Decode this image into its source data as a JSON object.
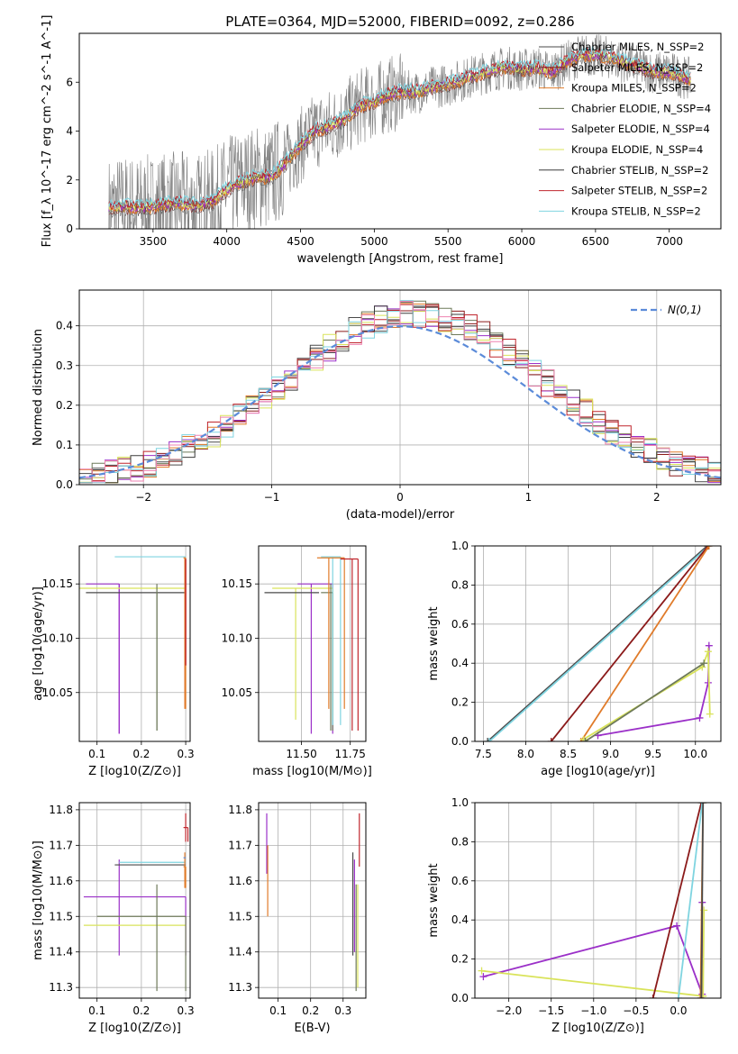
{
  "figure": {
    "title": "PLATE=0364, MJD=52000, FIBERID=0092, z=0.286"
  },
  "chart_data": [
    {
      "id": "spectrum",
      "type": "line",
      "title": "PLATE=0364, MJD=52000, FIBERID=0092, z=0.286",
      "xlabel": "wavelength [Angstrom, rest frame]",
      "ylabel": "Flux [f_λ 10^-17 erg cm^-2 s^-1 A^-1]",
      "xlim": [
        3000,
        7350
      ],
      "ylim": [
        0,
        8
      ],
      "xticks": [
        3500,
        4000,
        4500,
        5000,
        5500,
        6000,
        6500,
        7000
      ],
      "yticks": [
        0,
        2,
        4,
        6
      ],
      "grid": false,
      "legend_loc": "upper right",
      "data_color": "#7f7f7f",
      "data_range": [
        3200,
        7150
      ],
      "series": [
        {
          "name": "Chabrier MILES, N_SSP=2",
          "color": "#4a4a4a",
          "width": 0.5
        },
        {
          "name": "Salpeter MILES, N_SSP=2",
          "color": "#8b1a1a",
          "width": 0.5
        },
        {
          "name": "Kroupa MILES, N_SSP=2",
          "color": "#e07b2a",
          "width": 1.0
        },
        {
          "name": "Chabrier ELODIE, N_SSP=4",
          "color": "#6e7a5a",
          "width": 0.5
        },
        {
          "name": "Salpeter ELODIE, N_SSP=4",
          "color": "#9b30c8",
          "width": 1.0
        },
        {
          "name": "Kroupa ELODIE, N_SSP=4",
          "color": "#d9e35a",
          "width": 1.0
        },
        {
          "name": "Chabrier STELIB, N_SSP=2",
          "color": "#3a3a3a",
          "width": 0.5
        },
        {
          "name": "Salpeter STELIB, N_SSP=2",
          "color": "#c0262d",
          "width": 1.0
        },
        {
          "name": "Kroupa STELIB, N_SSP=2",
          "color": "#7fd4e0",
          "width": 1.0
        }
      ],
      "model_continuum": {
        "x": [
          3200,
          3300,
          3450,
          3600,
          3700,
          3800,
          3900,
          4000,
          4100,
          4200,
          4300,
          4400,
          4500,
          4600,
          4700,
          4800,
          4900,
          5000,
          5100,
          5200,
          5300,
          5400,
          5500,
          5600,
          5700,
          5800,
          5900,
          6000,
          6100,
          6200,
          6300,
          6400,
          6500,
          6600,
          6700,
          6800,
          6900,
          7000,
          7100,
          7150
        ],
        "y": [
          0.8,
          0.9,
          0.85,
          1.0,
          1.0,
          0.95,
          1.1,
          1.6,
          1.9,
          2.1,
          2.1,
          2.7,
          3.4,
          4.0,
          4.2,
          4.5,
          5.0,
          5.2,
          5.5,
          5.6,
          5.6,
          5.8,
          5.9,
          6.1,
          6.3,
          6.5,
          6.6,
          6.5,
          6.6,
          6.4,
          6.8,
          7.1,
          7.1,
          7.0,
          6.8,
          6.6,
          6.4,
          6.4,
          6.2,
          6.1
        ]
      }
    },
    {
      "id": "residuals",
      "type": "line",
      "xlabel": "(data-model)/error",
      "ylabel": "Normed distribution",
      "xlim": [
        -2.5,
        2.5
      ],
      "ylim": [
        0,
        0.49
      ],
      "xticks": [
        -2,
        -1,
        0,
        1,
        2
      ],
      "yticks": [
        0.0,
        0.1,
        0.2,
        0.3,
        0.4
      ],
      "grid": true,
      "legend_loc": "upper right",
      "series": [
        {
          "name": "N(0,1)",
          "color": "#5b8bd9",
          "style": "dashed"
        }
      ],
      "histogram_colors": [
        "#4a4a4a",
        "#8b1a1a",
        "#e07b2a",
        "#6e7a5a",
        "#9b30c8",
        "#d9e35a",
        "#3a3a3a",
        "#c0262d",
        "#7fd4e0",
        "#ee82b0"
      ]
    },
    {
      "id": "age_vs_Z",
      "type": "scatter",
      "xlabel": "Z [log10(Z/Z⊙)]",
      "ylabel": "age [log10(age/yr)]",
      "xlim": [
        0.06,
        0.31
      ],
      "ylim": [
        10.005,
        10.185
      ],
      "xticks": [
        0.1,
        0.2,
        0.3
      ],
      "yticks": [
        10.05,
        10.1,
        10.15
      ],
      "grid": true,
      "points": [
        {
          "x": 0.15,
          "y": 10.15,
          "xerr": [
            0.075,
            0.15
          ],
          "yerr": [
            10.012,
            10.15
          ],
          "color": "#9b30c8"
        },
        {
          "x": 0.12,
          "y": 10.146,
          "xerr": [
            0.06,
            0.3
          ],
          "yerr": [
            10.146,
            10.146
          ],
          "color": "#d9e35a"
        },
        {
          "x": 0.2,
          "y": 10.142,
          "xerr": [
            0.075,
            0.3
          ],
          "yerr": [
            10.142,
            10.142
          ],
          "color": "#4a4a4a"
        },
        {
          "x": 0.235,
          "y": 10.142,
          "xerr": [
            0.235,
            0.235
          ],
          "yerr": [
            10.015,
            10.15
          ],
          "color": "#6e7a5a"
        },
        {
          "x": 0.2,
          "y": 10.175,
          "xerr": [
            0.14,
            0.3
          ],
          "yerr": [
            10.175,
            10.175
          ],
          "color": "#7fd4e0"
        },
        {
          "x": 0.298,
          "y": 10.174,
          "xerr": [
            0.295,
            0.3
          ],
          "yerr": [
            10.035,
            10.174
          ],
          "color": "#e07b2a"
        },
        {
          "x": 0.3,
          "y": 10.173,
          "xerr": [
            0.3,
            0.3
          ],
          "yerr": [
            10.075,
            10.173
          ],
          "color": "#c0262d"
        }
      ]
    },
    {
      "id": "age_vs_mass",
      "type": "scatter",
      "xlabel": "mass [log10(M/M⊙)]",
      "ylabel": "",
      "xlim": [
        11.28,
        11.83
      ],
      "ylim": [
        10.005,
        10.185
      ],
      "xticks": [
        11.5,
        11.75
      ],
      "yticks": [
        10.05,
        10.1,
        10.15
      ],
      "grid": true,
      "points": [
        {
          "x": 11.55,
          "y": 10.15,
          "xerr": [
            11.48,
            11.66
          ],
          "yerr": [
            10.012,
            10.15
          ],
          "color": "#9b30c8"
        },
        {
          "x": 11.47,
          "y": 10.146,
          "xerr": [
            11.35,
            11.66
          ],
          "yerr": [
            10.025,
            10.146
          ],
          "color": "#d9e35a"
        },
        {
          "x": 11.5,
          "y": 10.142,
          "xerr": [
            11.31,
            11.59
          ],
          "yerr": [
            10.142,
            10.142
          ],
          "color": "#4a4a4a"
        },
        {
          "x": 11.65,
          "y": 10.142,
          "xerr": [
            11.6,
            11.66
          ],
          "yerr": [
            10.015,
            10.15
          ],
          "color": "#6e7a5a"
        },
        {
          "x": 11.66,
          "y": 10.175,
          "xerr": [
            11.6,
            11.7
          ],
          "yerr": [
            10.02,
            10.175
          ],
          "color": "#7fd4e0"
        },
        {
          "x": 11.64,
          "y": 10.174,
          "xerr": [
            11.58,
            11.72
          ],
          "yerr": [
            10.035,
            10.174
          ],
          "color": "#e07b2a"
        },
        {
          "x": 11.76,
          "y": 10.173,
          "xerr": [
            11.7,
            11.79
          ],
          "yerr": [
            10.015,
            10.173
          ],
          "color": "#c0262d"
        }
      ]
    },
    {
      "id": "weight_vs_age",
      "type": "line",
      "xlabel": "age [log10(age/yr)]",
      "ylabel": "mass weight",
      "xlim": [
        7.4,
        10.3
      ],
      "ylim": [
        0.0,
        1.0
      ],
      "xticks": [
        7.5,
        8.0,
        8.5,
        9.0,
        9.5,
        10.0
      ],
      "yticks": [
        0.0,
        0.2,
        0.4,
        0.6,
        0.8,
        1.0
      ],
      "grid": true,
      "series": [
        {
          "name": "",
          "color": "#4a4a4a",
          "x": [
            7.55,
            10.14
          ],
          "y": [
            0.0,
            1.0
          ]
        },
        {
          "name": "",
          "color": "#7fd4e0",
          "x": [
            7.57,
            10.16
          ],
          "y": [
            0.0,
            1.0
          ]
        },
        {
          "name": "",
          "color": "#8b1a1a",
          "x": [
            8.3,
            10.15
          ],
          "y": [
            0.0,
            1.0
          ]
        },
        {
          "name": "",
          "color": "#e07b2a",
          "x": [
            8.65,
            10.16
          ],
          "y": [
            0.0,
            1.0
          ]
        },
        {
          "name": "",
          "color": "#9b30c8",
          "x": [
            8.85,
            10.05,
            10.15,
            10.16
          ],
          "y": [
            0.03,
            0.12,
            0.3,
            0.49
          ]
        },
        {
          "name": "",
          "color": "#d9e35a",
          "x": [
            8.68,
            10.08,
            10.15,
            10.17
          ],
          "y": [
            0.01,
            0.38,
            0.46,
            0.14
          ]
        },
        {
          "name": "",
          "color": "#6e7a5a",
          "x": [
            8.7,
            10.1
          ],
          "y": [
            0.0,
            0.4
          ]
        }
      ]
    },
    {
      "id": "mass_vs_Z",
      "type": "scatter",
      "xlabel": "Z [log10(Z/Z⊙)]",
      "ylabel": "mass [log10(M/M⊙)]",
      "xlim": [
        0.06,
        0.31
      ],
      "ylim": [
        11.27,
        11.82
      ],
      "xticks": [
        0.1,
        0.2,
        0.3
      ],
      "yticks": [
        11.3,
        11.4,
        11.5,
        11.6,
        11.7,
        11.8
      ],
      "grid": true,
      "points": [
        {
          "x": 0.15,
          "y": 11.555,
          "xerr": [
            0.07,
            0.3
          ],
          "yerr": [
            11.39,
            11.66
          ],
          "color": "#9b30c8"
        },
        {
          "x": 0.12,
          "y": 11.475,
          "xerr": [
            0.07,
            0.3
          ],
          "yerr": [
            11.475,
            11.475
          ],
          "color": "#d9e35a"
        },
        {
          "x": 0.235,
          "y": 11.5,
          "xerr": [
            0.1,
            0.3
          ],
          "yerr": [
            11.29,
            11.59
          ],
          "color": "#6e7a5a"
        },
        {
          "x": 0.2,
          "y": 11.645,
          "xerr": [
            0.14,
            0.3
          ],
          "yerr": [
            11.645,
            11.645
          ],
          "color": "#4a4a4a"
        },
        {
          "x": 0.22,
          "y": 11.652,
          "xerr": [
            0.15,
            0.3
          ],
          "yerr": [
            11.652,
            11.652
          ],
          "color": "#7fd4e0"
        },
        {
          "x": 0.298,
          "y": 11.64,
          "xerr": [
            0.295,
            0.3
          ],
          "yerr": [
            11.58,
            11.68
          ],
          "color": "#e07b2a"
        },
        {
          "x": 0.298,
          "y": 11.665,
          "xerr": [
            0.295,
            0.3
          ],
          "yerr": [
            11.665,
            11.665
          ],
          "color": "#5b8bd9"
        },
        {
          "x": 0.3,
          "y": 11.75,
          "xerr": [
            0.295,
            0.305
          ],
          "yerr": [
            11.71,
            11.79
          ],
          "color": "#c0262d"
        }
      ]
    },
    {
      "id": "mass_vs_EBV",
      "type": "scatter",
      "xlabel": "E(B-V)",
      "ylabel": "",
      "xlim": [
        0.04,
        0.37
      ],
      "ylim": [
        11.27,
        11.82
      ],
      "xticks": [
        0.1,
        0.2,
        0.3
      ],
      "yticks": [
        11.3,
        11.4,
        11.5,
        11.6,
        11.7,
        11.8
      ],
      "grid": true,
      "points": [
        {
          "x": 0.065,
          "y": 11.7,
          "yerr": [
            11.62,
            11.79
          ],
          "color": "#9b30c8"
        },
        {
          "x": 0.068,
          "y": 11.6,
          "yerr": [
            11.5,
            11.7
          ],
          "color": "#e07b2a"
        },
        {
          "x": 0.33,
          "y": 11.66,
          "yerr": [
            11.39,
            11.68
          ],
          "color": "#4a4a4a"
        },
        {
          "x": 0.335,
          "y": 11.55,
          "yerr": [
            11.4,
            11.66
          ],
          "color": "#9b30c8"
        },
        {
          "x": 0.34,
          "y": 11.5,
          "yerr": [
            11.29,
            11.59
          ],
          "color": "#6e7a5a"
        },
        {
          "x": 0.345,
          "y": 11.45,
          "yerr": [
            11.3,
            11.59
          ],
          "color": "#d9e35a"
        },
        {
          "x": 0.35,
          "y": 11.72,
          "yerr": [
            11.64,
            11.79
          ],
          "color": "#c0262d"
        }
      ]
    },
    {
      "id": "weight_vs_Z",
      "type": "line",
      "xlabel": "Z [log10(Z/Z⊙)]",
      "ylabel": "mass weight",
      "xlim": [
        -2.4,
        0.5
      ],
      "ylim": [
        0.0,
        1.0
      ],
      "xticks": [
        -2.0,
        -1.5,
        -1.0,
        -0.5,
        0.0
      ],
      "yticks": [
        0.0,
        0.2,
        0.4,
        0.6,
        0.8,
        1.0
      ],
      "grid": true,
      "series": [
        {
          "name": "",
          "color": "#9b30c8",
          "x": [
            -2.3,
            -0.02,
            0.28,
            0.28
          ],
          "y": [
            0.11,
            0.37,
            0.02,
            0.49
          ]
        },
        {
          "name": "",
          "color": "#d9e35a",
          "x": [
            -2.32,
            0.29,
            0.3
          ],
          "y": [
            0.14,
            0.01,
            0.45
          ]
        },
        {
          "name": "",
          "color": "#8b1a1a",
          "x": [
            -0.3,
            0.27
          ],
          "y": [
            0.0,
            1.0
          ]
        },
        {
          "name": "",
          "color": "#e07b2a",
          "x": [
            0.26,
            0.29
          ],
          "y": [
            0.0,
            1.0
          ]
        },
        {
          "name": "",
          "color": "#7fd4e0",
          "x": [
            0.0,
            0.28
          ],
          "y": [
            0.0,
            1.0
          ]
        },
        {
          "name": "",
          "color": "#4a4a4a",
          "x": [
            0.27,
            0.29
          ],
          "y": [
            0.0,
            1.0
          ]
        }
      ]
    }
  ]
}
